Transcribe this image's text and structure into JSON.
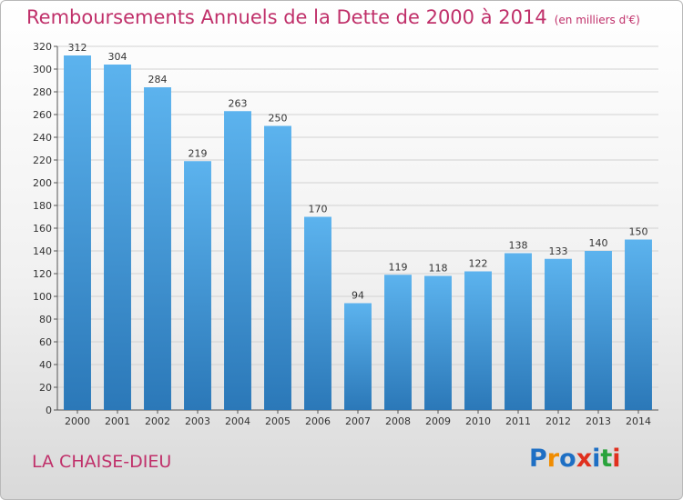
{
  "header": {
    "title": "Remboursements Annuels de la Dette de 2000 à 2014",
    "unit": "(en milliers d'€)"
  },
  "footer": {
    "place": "LA CHAISE-DIEU",
    "logo": "Proxiti"
  },
  "colors": {
    "title": "#c0306a",
    "bar_top": "#5cb3ee",
    "bar_bottom": "#2b78b8",
    "grid": "#d2d2d2",
    "logo_letters": [
      "#1e6fc4",
      "#f08c00",
      "#1e6fc4",
      "#e0301e",
      "#1e6fc4",
      "#2aa33c",
      "#e0301e"
    ]
  },
  "chart_data": {
    "type": "bar",
    "title": "Remboursements Annuels de la Dette de 2000 à 2014",
    "subtitle": "(en milliers d'€)",
    "xlabel": "",
    "ylabel": "",
    "categories": [
      "2000",
      "2001",
      "2002",
      "2003",
      "2004",
      "2005",
      "2006",
      "2007",
      "2008",
      "2009",
      "2010",
      "2011",
      "2012",
      "2013",
      "2014"
    ],
    "values": [
      312,
      304,
      284,
      219,
      263,
      250,
      170,
      94,
      119,
      118,
      122,
      138,
      133,
      140,
      150
    ],
    "ylim": [
      0,
      320
    ],
    "yticks": [
      0,
      20,
      40,
      60,
      80,
      100,
      120,
      140,
      160,
      180,
      200,
      220,
      240,
      260,
      280,
      300,
      320
    ],
    "grid": true,
    "legend": "none"
  }
}
